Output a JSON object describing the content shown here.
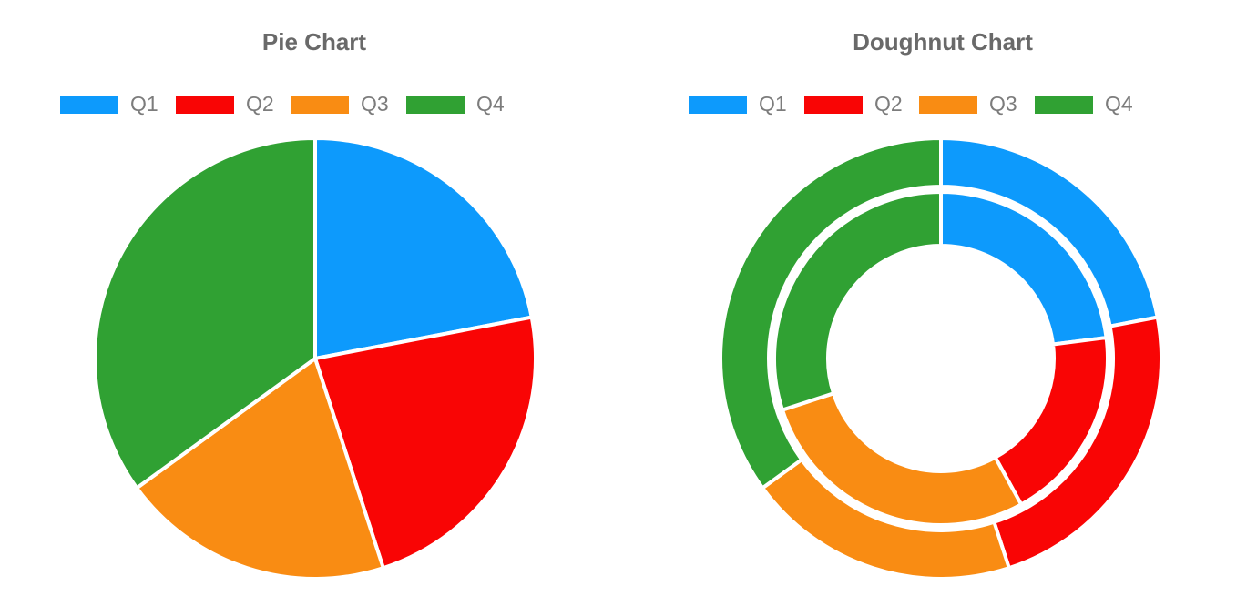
{
  "chart_data": [
    {
      "type": "pie",
      "title": "Pie Chart",
      "categories": [
        "Q1",
        "Q2",
        "Q3",
        "Q4"
      ],
      "values": [
        22,
        23,
        20,
        35
      ],
      "values_note": "approximate percentages estimated from slice angles (boundaries at ~80, 164, 234 degrees clockwise from top); no numeric labels are shown in the chart",
      "colors": [
        "#0d9afc",
        "#f90505",
        "#f98c13",
        "#30a133"
      ],
      "slice_border_color": "#ffffff",
      "legend_position": "top",
      "legend_entries": [
        "Q1",
        "Q2",
        "Q3",
        "Q4"
      ],
      "start_angle_deg": 0,
      "clockwise": true
    },
    {
      "type": "doughnut",
      "title": "Doughnut Chart",
      "categories": [
        "Q1",
        "Q2",
        "Q3",
        "Q4"
      ],
      "series": [
        {
          "name": "outer ring",
          "values": [
            22,
            23,
            20,
            35
          ]
        },
        {
          "name": "inner ring",
          "values": [
            23,
            19,
            28,
            30
          ]
        }
      ],
      "values_note": "approximate percentages estimated from arc angles (outer ring boundaries ~80/164/234 deg, inner ring ~83/152/254 deg clockwise from top); no numeric labels are shown",
      "colors": [
        "#0d9afc",
        "#f90505",
        "#f98c13",
        "#30a133"
      ],
      "slice_border_color": "#ffffff",
      "legend_position": "top",
      "legend_entries": [
        "Q1",
        "Q2",
        "Q3",
        "Q4"
      ],
      "start_angle_deg": 0,
      "clockwise": true,
      "hole_radius_pct": 51
    }
  ]
}
